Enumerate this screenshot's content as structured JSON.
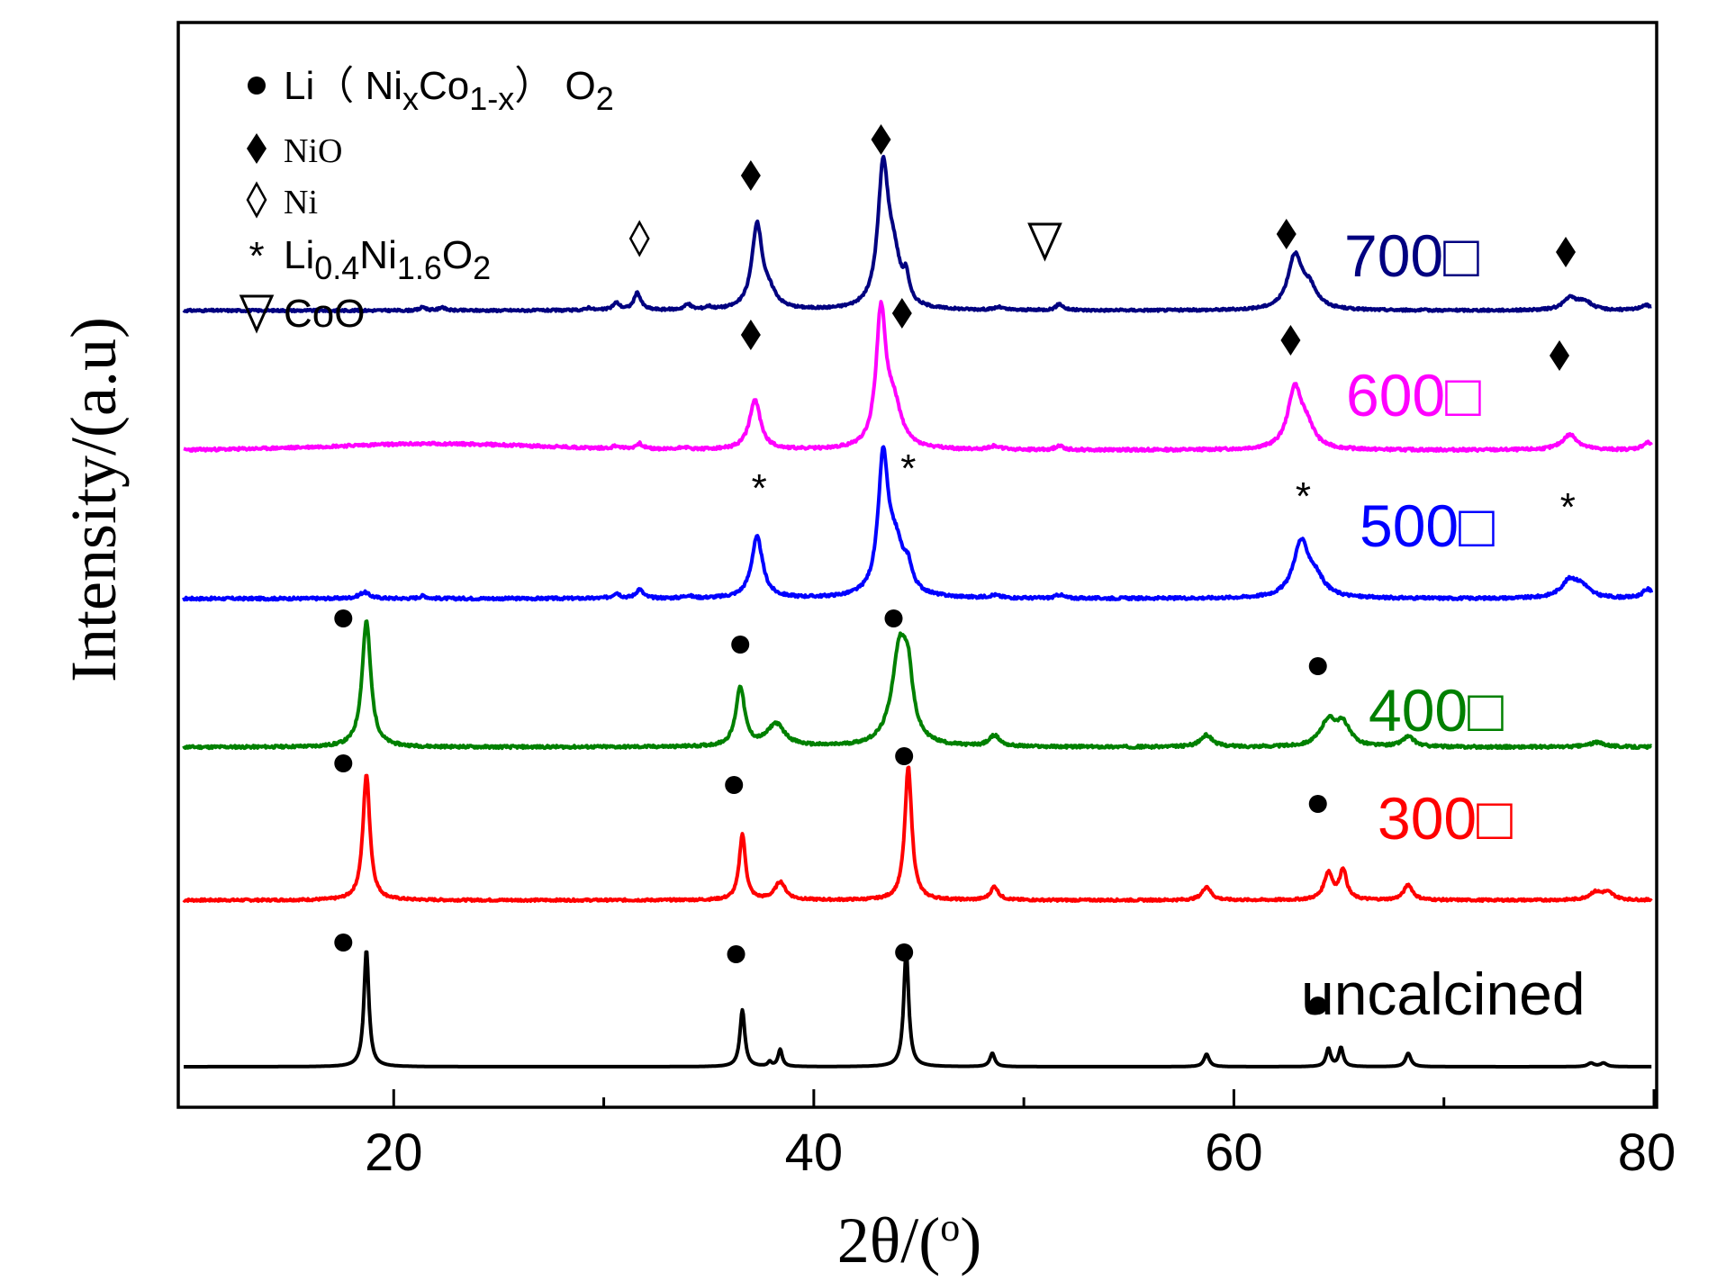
{
  "chart_data": {
    "type": "line",
    "title": "",
    "xlabel": "2θ/(",
    "xlabel_sup": "o",
    "xlabel_end": ")",
    "ylabel": "Intensity/(a.u)",
    "xlim": [
      10,
      80
    ],
    "x_ticks": [
      20,
      40,
      60,
      80
    ],
    "x_minor_ticks": [
      30,
      50,
      70
    ],
    "legend": {
      "position": "top-left",
      "entries": [
        {
          "symbol": "circle",
          "parts": [
            [
              "Li（ Ni",
              ""
            ],
            [
              "x",
              "sub"
            ],
            [
              "Co",
              ""
            ],
            [
              "1-x",
              "sub"
            ],
            [
              "） O",
              ""
            ],
            [
              "2",
              "sub"
            ]
          ],
          "font": "sans"
        },
        {
          "symbol": "diamond-filled",
          "parts": [
            [
              "NiO",
              ""
            ]
          ],
          "font": "serif"
        },
        {
          "symbol": "diamond-open",
          "parts": [
            [
              "Ni",
              ""
            ]
          ],
          "font": "serif"
        },
        {
          "symbol": "star",
          "parts": [
            [
              "Li",
              ""
            ],
            [
              "0.4",
              "sub"
            ],
            [
              "Ni",
              ""
            ],
            [
              "1.6",
              "sub"
            ],
            [
              "O",
              ""
            ],
            [
              "2",
              "sub"
            ]
          ],
          "font": "sans"
        },
        {
          "symbol": "triangle-down-open",
          "parts": [
            [
              "CoO",
              ""
            ]
          ],
          "font": "sans"
        }
      ]
    },
    "series": [
      {
        "name": "uncalcined",
        "label": "uncalcined",
        "color": "#000000",
        "baseline": 0,
        "noise": 0.0,
        "seed": 3,
        "peaks": [
          [
            18.7,
            13.0,
            0.14
          ],
          [
            36.6,
            6.3,
            0.14
          ],
          [
            37.9,
            0.5,
            0.1
          ],
          [
            38.4,
            1.9,
            0.12
          ],
          [
            44.4,
            13.0,
            0.14
          ],
          [
            48.5,
            1.5,
            0.14
          ],
          [
            58.7,
            1.4,
            0.15
          ],
          [
            64.5,
            2.0,
            0.13
          ],
          [
            65.1,
            2.1,
            0.13
          ],
          [
            68.3,
            1.5,
            0.15
          ],
          [
            77.0,
            0.4,
            0.18
          ],
          [
            77.6,
            0.4,
            0.18
          ]
        ],
        "markers": [
          [
            "circle",
            17.6,
            13.8
          ],
          [
            "circle",
            36.3,
            12.5
          ],
          [
            "circle",
            44.3,
            12.7
          ],
          [
            "circle",
            64.0,
            6.8
          ]
        ]
      },
      {
        "name": "300",
        "label": "300□",
        "color": "#ff0000",
        "baseline": 18.5,
        "noise": 0.12,
        "seed": 7,
        "peaks": [
          [
            18.7,
            14.0,
            0.2
          ],
          [
            36.6,
            7.3,
            0.18
          ],
          [
            38.4,
            2.0,
            0.3
          ],
          [
            44.5,
            14.8,
            0.2
          ],
          [
            48.6,
            1.5,
            0.22
          ],
          [
            58.7,
            1.5,
            0.25
          ],
          [
            64.5,
            3.0,
            0.25
          ],
          [
            65.2,
            3.3,
            0.2
          ],
          [
            68.3,
            1.7,
            0.25
          ],
          [
            77.2,
            0.8,
            0.35
          ],
          [
            77.8,
            0.8,
            0.35
          ]
        ],
        "markers": [
          [
            "circle",
            17.6,
            15.2
          ],
          [
            "circle",
            36.2,
            12.8
          ],
          [
            "circle",
            44.3,
            16.0
          ],
          [
            "circle",
            64.0,
            10.7
          ]
        ]
      },
      {
        "name": "400",
        "label": "400□",
        "color": "#008000",
        "baseline": 35.5,
        "noise": 0.15,
        "seed": 11,
        "peaks": [
          [
            18.7,
            14.0,
            0.25
          ],
          [
            36.5,
            6.6,
            0.25
          ],
          [
            38.2,
            2.5,
            0.5
          ],
          [
            44.1,
            11.0,
            0.45
          ],
          [
            44.5,
            5.0,
            0.25
          ],
          [
            48.6,
            1.2,
            0.3
          ],
          [
            58.7,
            1.3,
            0.35
          ],
          [
            64.5,
            2.8,
            0.45
          ],
          [
            65.2,
            2.3,
            0.4
          ],
          [
            68.3,
            1.1,
            0.35
          ],
          [
            77.3,
            0.5,
            0.5
          ]
        ],
        "markers": [
          [
            "circle",
            17.6,
            14.3
          ],
          [
            "circle",
            36.5,
            11.4
          ],
          [
            "circle",
            43.8,
            14.3
          ],
          [
            "circle",
            64.0,
            9.0
          ]
        ]
      },
      {
        "name": "500",
        "label": "500□",
        "color": "#0000ff",
        "baseline": 52.0,
        "noise": 0.15,
        "seed": 17,
        "peaks": [
          [
            18.6,
            0.7,
            0.3
          ],
          [
            21.4,
            0.3,
            0.2
          ],
          [
            30.6,
            0.6,
            0.2
          ],
          [
            31.7,
            1.0,
            0.2
          ],
          [
            34.0,
            0.3,
            0.2
          ],
          [
            37.3,
            6.8,
            0.32
          ],
          [
            43.3,
            14.5,
            0.28
          ],
          [
            43.9,
            5.5,
            0.5
          ],
          [
            44.5,
            2.0,
            0.2
          ],
          [
            48.6,
            0.3,
            0.3
          ],
          [
            51.7,
            0.4,
            0.2
          ],
          [
            63.2,
            6.0,
            0.45
          ],
          [
            63.9,
            1.8,
            0.5
          ],
          [
            76.0,
            2.0,
            0.5
          ],
          [
            76.6,
            1.0,
            0.4
          ],
          [
            79.7,
            1.0,
            0.3
          ]
        ],
        "markers": [
          [
            "star",
            37.4,
            12.4
          ],
          [
            "star",
            44.5,
            14.6
          ],
          [
            "star",
            63.3,
            11.5
          ],
          [
            "star",
            75.9,
            10.3
          ]
        ]
      },
      {
        "name": "600",
        "label": "600□",
        "color": "#ff00ff",
        "baseline": 68.5,
        "noise": 0.15,
        "seed": 23,
        "bump": [
          22.0,
          0.7,
          7.0
        ],
        "peaks": [
          [
            30.6,
            0.3,
            0.2
          ],
          [
            31.7,
            0.6,
            0.2
          ],
          [
            33.8,
            0.3,
            0.2
          ],
          [
            37.2,
            5.5,
            0.32
          ],
          [
            43.2,
            14.8,
            0.28
          ],
          [
            43.8,
            4.5,
            0.45
          ],
          [
            48.6,
            0.4,
            0.3
          ],
          [
            51.7,
            0.5,
            0.2
          ],
          [
            62.9,
            6.7,
            0.4
          ],
          [
            63.5,
            2.0,
            0.4
          ],
          [
            76.0,
            1.7,
            0.45
          ],
          [
            79.7,
            0.8,
            0.3
          ]
        ],
        "markers": [
          [
            "diamond",
            37.0,
            12.8
          ],
          [
            "diamond",
            44.2,
            15.2
          ],
          [
            "diamond",
            62.7,
            12.2
          ],
          [
            "diamond",
            75.5,
            10.5
          ]
        ]
      },
      {
        "name": "700",
        "label": "700□",
        "color": "#000080",
        "baseline": 84.0,
        "noise": 0.12,
        "seed": 31,
        "peaks": [
          [
            21.4,
            0.4,
            0.15
          ],
          [
            22.3,
            0.4,
            0.15
          ],
          [
            29.3,
            0.3,
            0.15
          ],
          [
            30.6,
            0.8,
            0.2
          ],
          [
            31.6,
            1.9,
            0.2
          ],
          [
            34.0,
            0.6,
            0.2
          ],
          [
            35.0,
            0.3,
            0.2
          ],
          [
            37.3,
            9.3,
            0.3
          ],
          [
            37.9,
            1.5,
            0.4
          ],
          [
            43.3,
            15.0,
            0.3
          ],
          [
            43.8,
            5.0,
            0.4
          ],
          [
            44.4,
            2.5,
            0.15
          ],
          [
            48.8,
            0.3,
            0.25
          ],
          [
            51.7,
            0.7,
            0.2
          ],
          [
            62.9,
            5.8,
            0.4
          ],
          [
            63.6,
            2.2,
            0.45
          ],
          [
            76.0,
            1.3,
            0.4
          ],
          [
            76.7,
            0.9,
            0.4
          ],
          [
            79.6,
            0.6,
            0.3
          ]
        ],
        "markers": [
          [
            "diamond",
            37.0,
            15.0
          ],
          [
            "diamond",
            43.2,
            19.0
          ],
          [
            "diamond-open",
            31.7,
            8.0
          ],
          [
            "triangle-down-open",
            51.0,
            7.7
          ],
          [
            "diamond",
            62.5,
            8.5
          ],
          [
            "diamond",
            75.8,
            6.5
          ]
        ]
      }
    ]
  }
}
